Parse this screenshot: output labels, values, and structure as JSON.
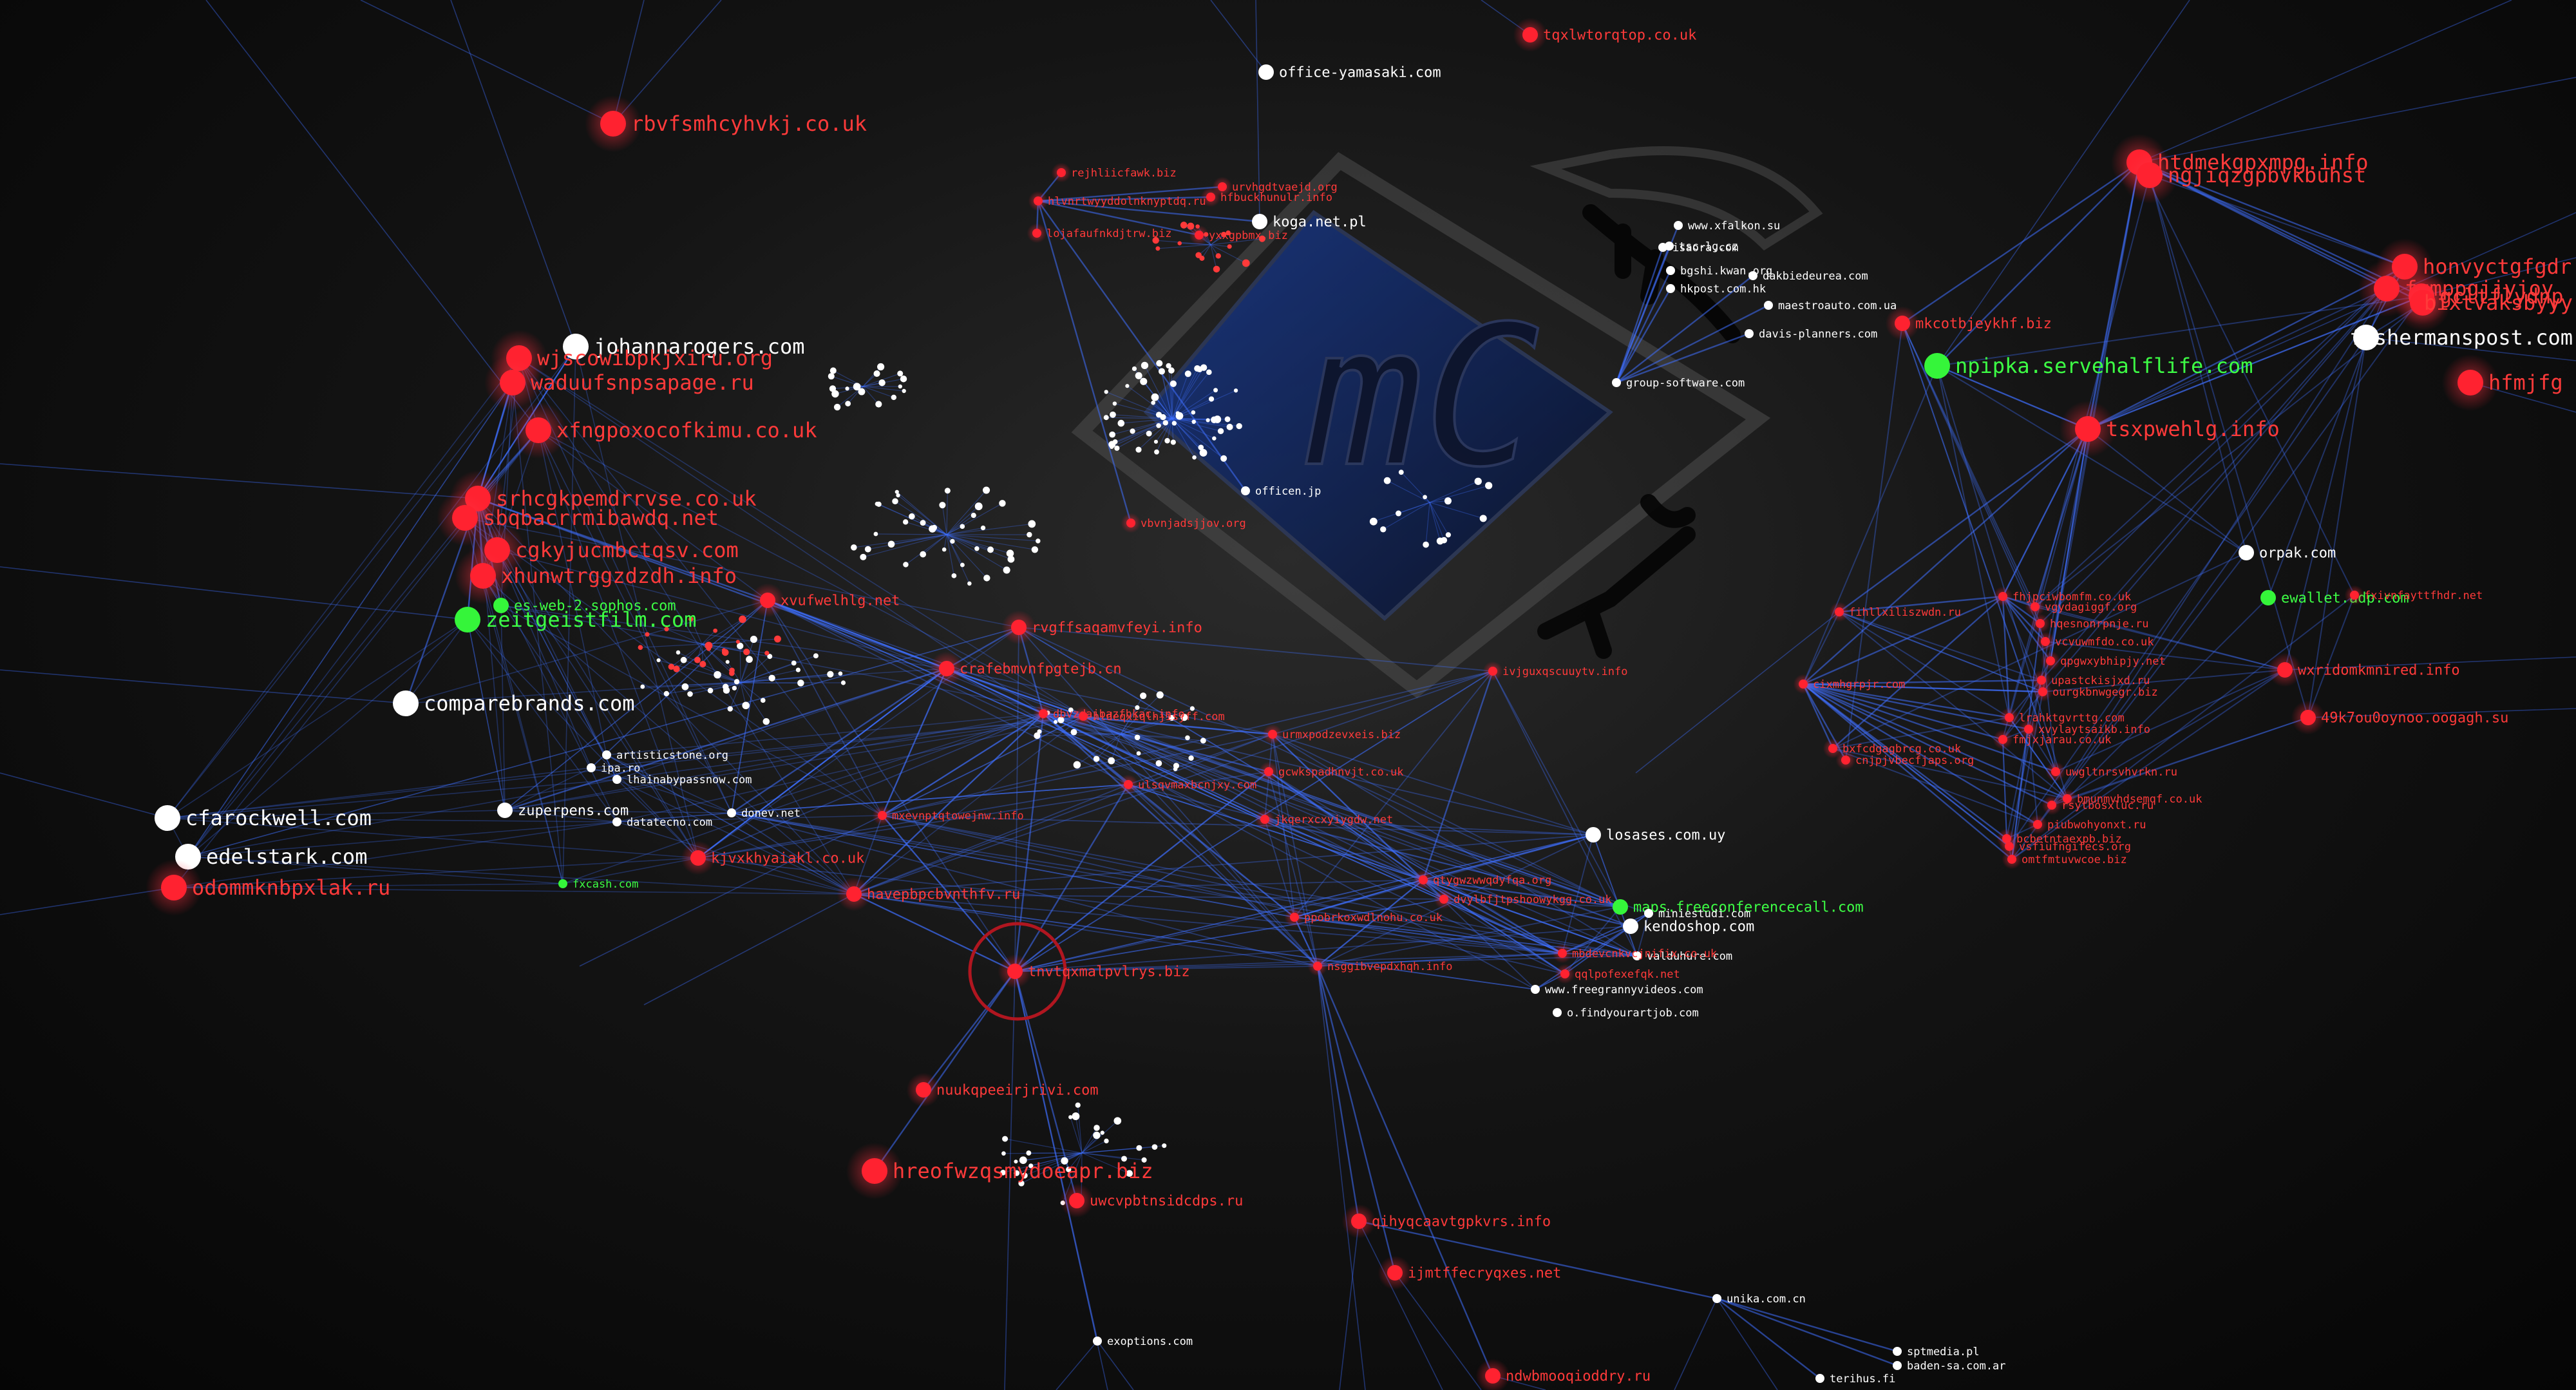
{
  "colors": {
    "background": "#0a0a0a",
    "edge": "#3f6fff",
    "malicious_node": "#ff2230",
    "malicious_label": "#ff3a3a",
    "benign_node": "#ffffff",
    "benign_label": "#ffffff",
    "highlight_node": "#35f53a",
    "highlight_label": "#3dff45"
  },
  "watermark": {
    "letters": "mC"
  },
  "nodes": [
    {
      "id": "rbvf",
      "label": "rbvfsmhcyhvkj.co.uk",
      "kind": "malicious",
      "size": "large"
    },
    {
      "id": "tqxl",
      "label": "tqxlwtorqtop.co.uk",
      "kind": "malicious",
      "size": "medium"
    },
    {
      "id": "offyam",
      "label": "office-yamasaki.com",
      "kind": "benign",
      "size": "medium"
    },
    {
      "id": "rejh",
      "label": "rejhliicfawk.biz",
      "kind": "malicious",
      "size": "small"
    },
    {
      "id": "urvh",
      "label": "urvhgdtvaejd.org",
      "kind": "malicious",
      "size": "small"
    },
    {
      "id": "hlvn",
      "label": "hlvnrtwyyddolnknyptdq.ru",
      "kind": "malicious",
      "size": "small"
    },
    {
      "id": "hfbu",
      "label": "hfbuckhunulr.info",
      "kind": "malicious",
      "size": "small"
    },
    {
      "id": "koga",
      "label": "koga.net.pl",
      "kind": "benign",
      "size": "medium"
    },
    {
      "id": "loja",
      "label": "lojafaufnkdjtrw.biz",
      "kind": "malicious",
      "size": "small"
    },
    {
      "id": "yxxg",
      "label": "yxxgpbmx.biz",
      "kind": "malicious",
      "size": "small"
    },
    {
      "id": "johanna",
      "label": "johannarogers.com",
      "kind": "benign",
      "size": "large"
    },
    {
      "id": "wjsc",
      "label": "wjscowibpkjxiru.org",
      "kind": "malicious",
      "size": "large"
    },
    {
      "id": "wadu",
      "label": "waduufsnpsapage.ru",
      "kind": "malicious",
      "size": "large"
    },
    {
      "id": "xfng",
      "label": "xfngpoxocofkimu.co.uk",
      "kind": "malicious",
      "size": "large"
    },
    {
      "id": "srhc",
      "label": "srhcgkpemdrrvse.co.uk",
      "kind": "malicious",
      "size": "large"
    },
    {
      "id": "sbqb",
      "label": "sbqbacrrmibawdq.net",
      "kind": "malicious",
      "size": "large"
    },
    {
      "id": "cgky",
      "label": "cgkyjucmbctqsv.com",
      "kind": "malicious",
      "size": "large"
    },
    {
      "id": "xhun",
      "label": "xhunwtrggzdzdh.info",
      "kind": "malicious",
      "size": "large"
    },
    {
      "id": "esweb",
      "label": "es-web-2.sophos.com",
      "kind": "highlight",
      "size": "medium"
    },
    {
      "id": "zeitg",
      "label": "zeitgeistfilm.com",
      "kind": "highlight",
      "size": "large"
    },
    {
      "id": "compare",
      "label": "comparebrands.com",
      "kind": "benign",
      "size": "large"
    },
    {
      "id": "xvuf",
      "label": "xvufwelhlg.net",
      "kind": "malicious",
      "size": "medium"
    },
    {
      "id": "rvgf",
      "label": "rvgffsaqamvfeyi.info",
      "kind": "malicious",
      "size": "medium"
    },
    {
      "id": "crafe",
      "label": "crafebmvnfpgtejb.cn",
      "kind": "malicious",
      "size": "medium"
    },
    {
      "id": "artist",
      "label": "artisticstone.org",
      "kind": "benign",
      "size": "small"
    },
    {
      "id": "ipa",
      "label": "ipa.ro",
      "kind": "benign",
      "size": "small"
    },
    {
      "id": "lhai",
      "label": "lhainabypassnow.com",
      "kind": "benign",
      "size": "small"
    },
    {
      "id": "cfaro",
      "label": "cfarockwell.com",
      "kind": "benign",
      "size": "large"
    },
    {
      "id": "edels",
      "label": "edelstark.com",
      "kind": "benign",
      "size": "large"
    },
    {
      "id": "odomm",
      "label": "odommknbpxlak.ru",
      "kind": "malicious",
      "size": "large"
    },
    {
      "id": "zuper",
      "label": "zuperpens.com",
      "kind": "benign",
      "size": "medium"
    },
    {
      "id": "donev",
      "label": "donev.net",
      "kind": "benign",
      "size": "small"
    },
    {
      "id": "datatec",
      "label": "datatecno.com",
      "kind": "benign",
      "size": "small"
    },
    {
      "id": "kjvx",
      "label": "kjvxkhyaiakl.co.uk",
      "kind": "malicious",
      "size": "medium"
    },
    {
      "id": "fxcash",
      "label": "fxcash.com",
      "kind": "highlight",
      "size": "small"
    },
    {
      "id": "havep",
      "label": "havepbpcbvnthfv.ru",
      "kind": "malicious",
      "size": "medium"
    },
    {
      "id": "tnvt",
      "label": "tnvtqxmalpvlrys.biz",
      "kind": "malicious",
      "size": "medium"
    },
    {
      "id": "nuukq",
      "label": "nuukqpeeirjrivi.com",
      "kind": "malicious",
      "size": "medium"
    },
    {
      "id": "hreof",
      "label": "hreofwzqsmydoeapr.biz",
      "kind": "malicious",
      "size": "large"
    },
    {
      "id": "uwcv",
      "label": "uwcvpbtnsidcdps.ru",
      "kind": "malicious",
      "size": "medium"
    },
    {
      "id": "exopt",
      "label": "exoptions.com",
      "kind": "benign",
      "size": "small"
    },
    {
      "id": "vbvn",
      "label": "vbvnjadsjjov.org",
      "kind": "malicious",
      "size": "small"
    },
    {
      "id": "officen",
      "label": "officen.jp",
      "kind": "benign",
      "size": "small"
    },
    {
      "id": "ivjg",
      "label": "ivjguxqscuuytv.info",
      "kind": "malicious",
      "size": "small"
    },
    {
      "id": "dbvz",
      "label": "dbvzdajbazfhkac.info",
      "kind": "malicious",
      "size": "small"
    },
    {
      "id": "hlde",
      "label": "hldeqxiqlhjisjff.com",
      "kind": "malicious",
      "size": "small"
    },
    {
      "id": "mxev",
      "label": "mxevnptqtowejnw.info",
      "kind": "malicious",
      "size": "small"
    },
    {
      "id": "urmx",
      "label": "urmxpodzevxeis.biz",
      "kind": "malicious",
      "size": "small"
    },
    {
      "id": "gcwk",
      "label": "gcwkspadhnvjt.co.uk",
      "kind": "malicious",
      "size": "small"
    },
    {
      "id": "ulsq",
      "label": "ulsqvmaxbcnjxy.com",
      "kind": "malicious",
      "size": "small"
    },
    {
      "id": "jkqe",
      "label": "jkqerxcxyiygdw.net",
      "kind": "malicious",
      "size": "small"
    },
    {
      "id": "qtyg",
      "label": "qtygwzwwqdyfqa.org",
      "kind": "malicious",
      "size": "small"
    },
    {
      "id": "dvyl",
      "label": "dvylbfjtpshoowykgg.co.uk",
      "kind": "malicious",
      "size": "small"
    },
    {
      "id": "ppob",
      "label": "ppobrkoxwdlnohu.co.uk",
      "kind": "malicious",
      "size": "small"
    },
    {
      "id": "nsgg",
      "label": "nsggibvepdxhqh.info",
      "kind": "malicious",
      "size": "small"
    },
    {
      "id": "losases",
      "label": "losases.com.uy",
      "kind": "benign",
      "size": "medium"
    },
    {
      "id": "maps",
      "label": "maps.freeconferencecall.com",
      "kind": "highlight",
      "size": "medium"
    },
    {
      "id": "miniest",
      "label": "miniestudi.com",
      "kind": "benign",
      "size": "small"
    },
    {
      "id": "kendo",
      "label": "kendoshop.com",
      "kind": "benign",
      "size": "medium"
    },
    {
      "id": "valdu",
      "label": "valduhure.com",
      "kind": "benign",
      "size": "small"
    },
    {
      "id": "mbdev",
      "label": "mbdevcnkvcjnifix.co.uk",
      "kind": "malicious",
      "size": "small"
    },
    {
      "id": "qqlp",
      "label": "qqlpofexefqk.net",
      "kind": "malicious",
      "size": "small"
    },
    {
      "id": "freegr",
      "label": "www.freegrannyvideos.com",
      "kind": "benign",
      "size": "small"
    },
    {
      "id": "ofind",
      "label": "o.findyourartjob.com",
      "kind": "benign",
      "size": "small"
    },
    {
      "id": "qihy",
      "label": "qihyqcaavtgpkvrs.info",
      "kind": "malicious",
      "size": "medium"
    },
    {
      "id": "ijmt",
      "label": "ijmtffecryqxes.net",
      "kind": "malicious",
      "size": "medium"
    },
    {
      "id": "ndwb",
      "label": "ndwbmooqioddry.ru",
      "kind": "malicious",
      "size": "medium"
    },
    {
      "id": "unika",
      "label": "unika.com.cn",
      "kind": "benign",
      "size": "small"
    },
    {
      "id": "sptmed",
      "label": "sptmedia.pl",
      "kind": "benign",
      "size": "small"
    },
    {
      "id": "baden",
      "label": "baden-sa.com.ar",
      "kind": "benign",
      "size": "small"
    },
    {
      "id": "terihus",
      "label": "terihus.fi",
      "kind": "benign",
      "size": "small"
    },
    {
      "id": "xfalk",
      "label": "www.xfalkon.su",
      "kind": "benign",
      "size": "small"
    },
    {
      "id": "tsc",
      "label": "tsc-lg.cz",
      "kind": "benign",
      "size": "small"
    },
    {
      "id": "isaora",
      "label": "isaora.com",
      "kind": "benign",
      "size": "small"
    },
    {
      "id": "bgsh",
      "label": "bgshi.kwan.org",
      "kind": "benign",
      "size": "small"
    },
    {
      "id": "hkpost",
      "label": "hkpost.com.hk",
      "kind": "benign",
      "size": "small"
    },
    {
      "id": "dakbi",
      "label": "dakbiedeurea.com",
      "kind": "benign",
      "size": "small"
    },
    {
      "id": "maestro",
      "label": "maestroauto.com.ua",
      "kind": "benign",
      "size": "small"
    },
    {
      "id": "mkco",
      "label": "mkcotbjeykhf.biz",
      "kind": "malicious",
      "size": "medium"
    },
    {
      "id": "davis",
      "label": "davis-planners.com",
      "kind": "benign",
      "size": "small"
    },
    {
      "id": "groupsw",
      "label": "group-software.com",
      "kind": "benign",
      "size": "small"
    },
    {
      "id": "npipka",
      "label": "npipka.servehalflife.com",
      "kind": "highlight",
      "size": "large"
    },
    {
      "id": "htdm",
      "label": "htdmekgpxmpg.info",
      "kind": "malicious",
      "size": "large"
    },
    {
      "id": "ngji",
      "label": "ngjiqzgpbvkbuhst",
      "kind": "malicious",
      "size": "large"
    },
    {
      "id": "honv",
      "label": "honvyctgfgdr",
      "kind": "malicious",
      "size": "large"
    },
    {
      "id": "fxmp",
      "label": "fxmppgjjyjoy",
      "kind": "malicious",
      "size": "large"
    },
    {
      "id": "gclt",
      "label": "gcltflydnp",
      "kind": "malicious",
      "size": "large"
    },
    {
      "id": "bixt",
      "label": "bixtvaksbyyy",
      "kind": "malicious",
      "size": "large"
    },
    {
      "id": "fisher",
      "label": "fishermanspost.com",
      "kind": "benign",
      "size": "large"
    },
    {
      "id": "hfmj",
      "label": "hfmjfg",
      "kind": "malicious",
      "size": "large"
    },
    {
      "id": "tsxp",
      "label": "tsxpwehlg.info",
      "kind": "malicious",
      "size": "large"
    },
    {
      "id": "orpak",
      "label": "orpak.com",
      "kind": "benign",
      "size": "medium"
    },
    {
      "id": "ewall",
      "label": "ewallet.adp.com",
      "kind": "highlight",
      "size": "medium"
    },
    {
      "id": "fxiv",
      "label": "fxivnfayttfhdr.net",
      "kind": "malicious",
      "size": "small"
    },
    {
      "id": "fhjp",
      "label": "fhjpciwbomfm.co.uk",
      "kind": "malicious",
      "size": "small"
    },
    {
      "id": "fihl",
      "label": "fihllxiliszwdn.ru",
      "kind": "malicious",
      "size": "small"
    },
    {
      "id": "vgyd",
      "label": "vgydagiggf.org",
      "kind": "malicious",
      "size": "small"
    },
    {
      "id": "hqes",
      "label": "hqesnonrpnje.ru",
      "kind": "malicious",
      "size": "small"
    },
    {
      "id": "vcvu",
      "label": "vcvuwmfdo.co.uk",
      "kind": "malicious",
      "size": "small"
    },
    {
      "id": "qpgw",
      "label": "qpgwxybhipjy.net",
      "kind": "malicious",
      "size": "small"
    },
    {
      "id": "wxri",
      "label": "wxridomkmnired.info",
      "kind": "malicious",
      "size": "medium"
    },
    {
      "id": "cixm",
      "label": "cixmhgrpjr.com",
      "kind": "malicious",
      "size": "small"
    },
    {
      "id": "upas",
      "label": "upastckisjxd.ru",
      "kind": "malicious",
      "size": "small"
    },
    {
      "id": "ourg",
      "label": "ourgkbnwgegr.biz",
      "kind": "malicious",
      "size": "small"
    },
    {
      "id": "k49",
      "label": "49k7ou0oynoo.oogagh.su",
      "kind": "malicious",
      "size": "medium"
    },
    {
      "id": "lrah",
      "label": "lrahktgvrttg.com",
      "kind": "malicious",
      "size": "small"
    },
    {
      "id": "xvyl",
      "label": "xvylaytsaikb.info",
      "kind": "malicious",
      "size": "small"
    },
    {
      "id": "fmjx",
      "label": "fmjxjarau.co.uk",
      "kind": "malicious",
      "size": "small"
    },
    {
      "id": "bxfc",
      "label": "bxfcdgagbrcg.co.uk",
      "kind": "malicious",
      "size": "small"
    },
    {
      "id": "cnjp",
      "label": "cnjpjvbecfjaps.org",
      "kind": "malicious",
      "size": "small"
    },
    {
      "id": "uwgl",
      "label": "uwgltnrsvhvrkn.ru",
      "kind": "malicious",
      "size": "small"
    },
    {
      "id": "bmun",
      "label": "bmunmvhdsemqf.co.uk",
      "kind": "malicious",
      "size": "small"
    },
    {
      "id": "rsyt",
      "label": "rsytbosxluc.ru",
      "kind": "malicious",
      "size": "small"
    },
    {
      "id": "piub",
      "label": "piubwohyonxt.ru",
      "kind": "malicious",
      "size": "small"
    },
    {
      "id": "bcbe",
      "label": "bcbetntaexpb.biz",
      "kind": "malicious",
      "size": "small"
    },
    {
      "id": "vsfi",
      "label": "vsfiufngifecs.org",
      "kind": "malicious",
      "size": "small"
    },
    {
      "id": "omtf",
      "label": "omtfmtuvwcoe.biz",
      "kind": "malicious",
      "size": "small"
    }
  ]
}
